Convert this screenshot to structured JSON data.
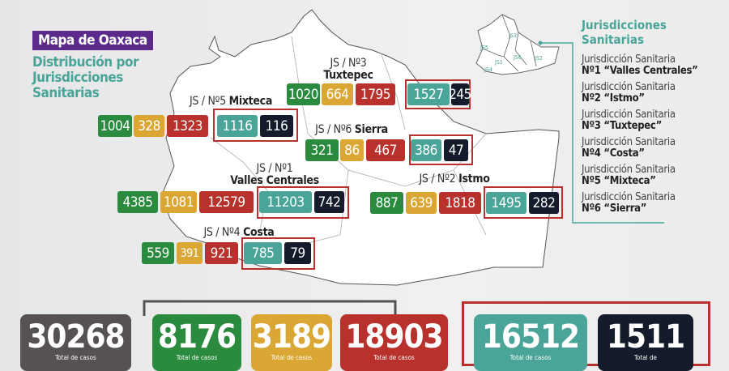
{
  "header": {
    "title": "Mapa de Oaxaca",
    "subtitle": "Distribución por Jurisdicciones Sanitarias"
  },
  "colors": {
    "green": "#2a8a3e",
    "yellow": "#dba734",
    "red": "#b8312c",
    "teal": "#4aa598",
    "navy": "#141c2c",
    "gray": "#555155",
    "purple": "#5b2a8a"
  },
  "jurisdictions": [
    {
      "code": "JS / Nº3",
      "name": "Tuxtepec",
      "values": [
        "1020",
        "664",
        "1795",
        "1527",
        "245"
      ]
    },
    {
      "code": "JS / Nº5",
      "name": "Mixteca",
      "values": [
        "1004",
        "328",
        "1323",
        "1116",
        "116"
      ]
    },
    {
      "code": "JS / Nº6",
      "name": "Sierra",
      "values": [
        "321",
        "86",
        "467",
        "386",
        "47"
      ]
    },
    {
      "code": "JS / Nº1",
      "name": "Valles Centrales",
      "values": [
        "4385",
        "1081",
        "12579",
        "11203",
        "742"
      ]
    },
    {
      "code": "JS / Nº2",
      "name": "Istmo",
      "values": [
        "887",
        "639",
        "1818",
        "1495",
        "282"
      ]
    },
    {
      "code": "JS / Nº4",
      "name": "Costa",
      "values": [
        "559",
        "391",
        "921",
        "785",
        "79"
      ]
    }
  ],
  "mini_map": {
    "labels": [
      "JS3",
      "JS5",
      "JS1",
      "JS6",
      "JS2",
      "JS4"
    ]
  },
  "legend": {
    "title": "Jurisdicciones Sanitarias",
    "items": [
      {
        "line1": "Jurisdicción Sanitaria",
        "line2": "Nº1 “Valles Centrales”"
      },
      {
        "line1": "Jurisdicción Sanitaria",
        "line2": "Nº2 “Istmo”"
      },
      {
        "line1": "Jurisdicción Sanitaria",
        "line2": "Nº3 “Tuxtepec”"
      },
      {
        "line1": "Jurisdicción Sanitaria",
        "line2": "Nº4 “Costa”"
      },
      {
        "line1": "Jurisdicción Sanitaria",
        "line2": "Nº5 “Mixteca”"
      },
      {
        "line1": "Jurisdicción Sanitaria",
        "line2": "Nº6 “Sierra”"
      }
    ]
  },
  "totals": [
    {
      "value": "30268",
      "caption": "Total de casos"
    },
    {
      "value": "8176",
      "caption": "Total de casos"
    },
    {
      "value": "3189",
      "caption": "Total de casos"
    },
    {
      "value": "18903",
      "caption": "Total de casos"
    },
    {
      "value": "16512",
      "caption": "Total de casos"
    },
    {
      "value": "1511",
      "caption": "Total de"
    }
  ]
}
